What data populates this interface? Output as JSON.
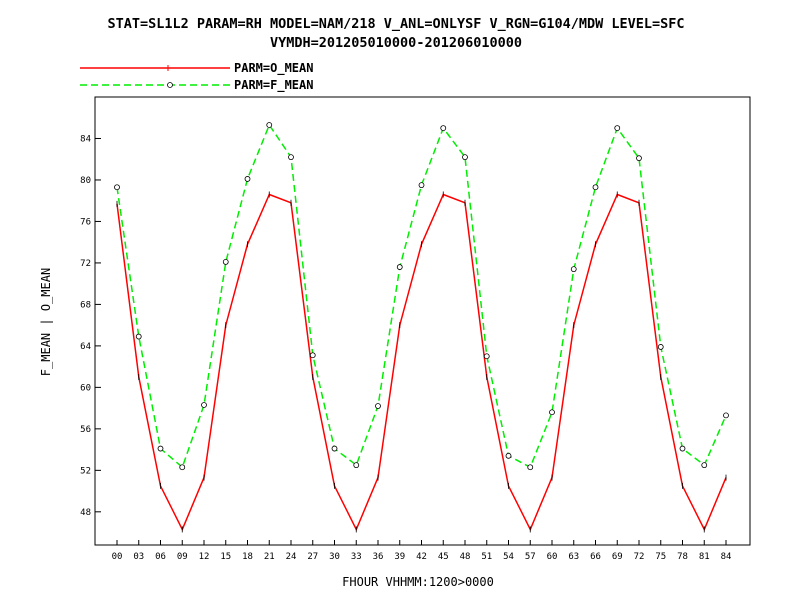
{
  "chart_data": {
    "type": "line",
    "title_line1": "STAT=SL1L2 PARAM=RH MODEL=NAM/218 V_ANL=ONLYSF V_RGN=G104/MDW LEVEL=SFC",
    "title_line2": "VYMDH=201205010000-201206010000",
    "xlabel": "FHOUR VHHMM:1200>0000",
    "ylabel": "F_MEAN | O_MEAN",
    "categories": [
      "00",
      "03",
      "06",
      "09",
      "12",
      "15",
      "18",
      "21",
      "24",
      "27",
      "30",
      "33",
      "36",
      "39",
      "42",
      "45",
      "48",
      "51",
      "54",
      "57",
      "60",
      "63",
      "66",
      "69",
      "72",
      "75",
      "78",
      "81",
      "84"
    ],
    "ylim": [
      44.8,
      88
    ],
    "yticks": [
      48,
      52,
      56,
      60,
      64,
      68,
      72,
      76,
      80,
      84
    ],
    "ytick_labels": [
      "48",
      "52",
      "56",
      "60",
      "64",
      "68",
      "72",
      "76",
      "80",
      "84"
    ],
    "legend_position": "top-left",
    "series": [
      {
        "name": "PARM=O_MEAN",
        "color": "#ff0000",
        "dash": "solid",
        "marker": "plus",
        "values": [
          77.7,
          61.0,
          50.5,
          46.3,
          51.3,
          66.0,
          73.8,
          78.6,
          77.8,
          61.0,
          50.5,
          46.3,
          51.3,
          66.0,
          73.8,
          78.6,
          77.8,
          61.0,
          50.5,
          46.3,
          51.3,
          66.0,
          73.8,
          78.6,
          77.8,
          61.0,
          50.5,
          46.3,
          51.3
        ]
      },
      {
        "name": "PARM=F_MEAN",
        "color": "#00ee00",
        "dash": "dashed",
        "marker": "circle",
        "values": [
          79.3,
          64.9,
          54.1,
          52.3,
          58.3,
          72.1,
          80.1,
          85.3,
          82.2,
          63.1,
          54.1,
          52.5,
          58.2,
          71.6,
          79.5,
          85.0,
          82.2,
          63.0,
          53.4,
          52.3,
          57.6,
          71.4,
          79.3,
          85.0,
          82.1,
          63.9,
          54.1,
          52.5,
          57.3
        ]
      }
    ]
  }
}
